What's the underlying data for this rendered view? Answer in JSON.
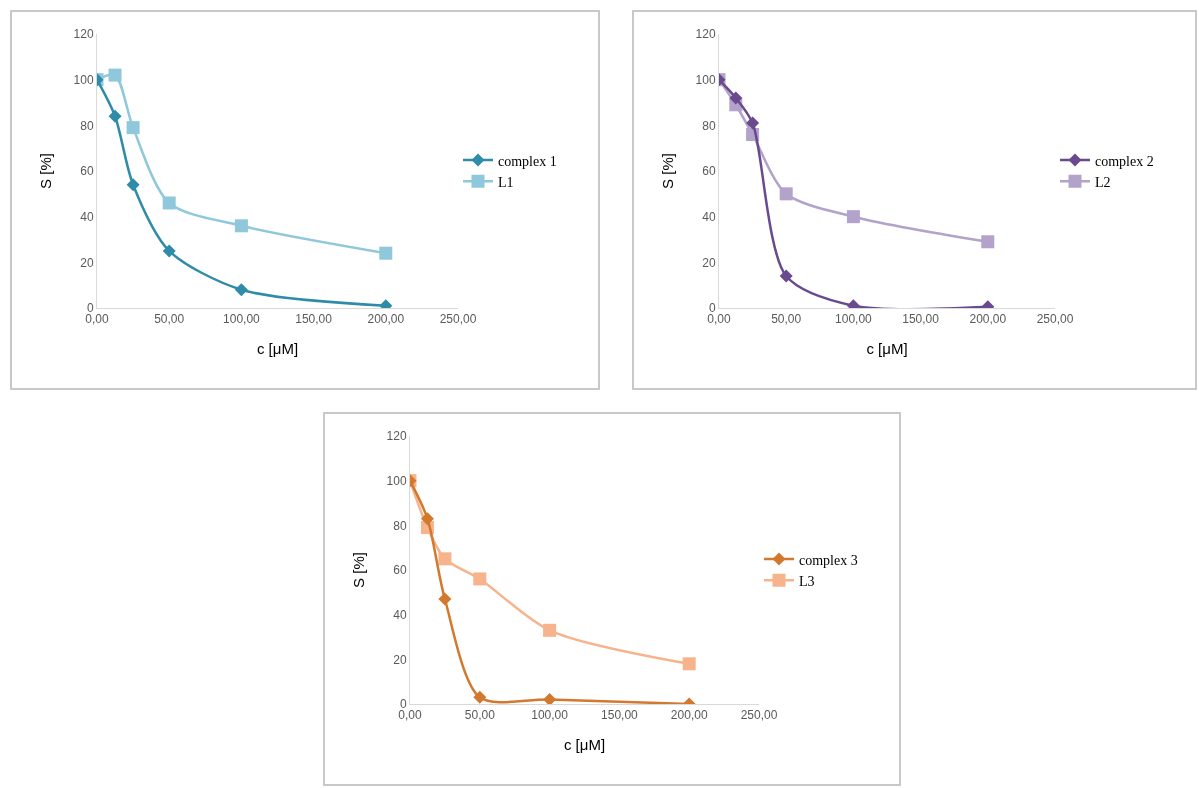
{
  "chart_data": [
    {
      "type": "line",
      "xlabel": "c [μM]",
      "ylabel": "S [%]",
      "x": [
        0,
        12.5,
        25,
        50,
        100,
        200
      ],
      "xlim": [
        0,
        250
      ],
      "xticks": [
        {
          "value": 0,
          "label": "0,00"
        },
        {
          "value": 50,
          "label": "50,00"
        },
        {
          "value": 100,
          "label": "100,00"
        },
        {
          "value": 150,
          "label": "150,00"
        },
        {
          "value": 200,
          "label": "200,00"
        },
        {
          "value": 250,
          "label": "250,00"
        }
      ],
      "ylim": [
        0,
        120
      ],
      "yticks": [
        0,
        20,
        40,
        60,
        80,
        100,
        120
      ],
      "grid": false,
      "legend": "right",
      "line_style": "solid",
      "series": [
        {
          "name": "complex 1",
          "color": "#2e8ca8",
          "marker": "diamond",
          "values": [
            100,
            84,
            54,
            25,
            8,
            1
          ]
        },
        {
          "name": "L1",
          "color": "#8ec8da",
          "marker": "square",
          "values": [
            100,
            102,
            79,
            46,
            36,
            24
          ]
        }
      ]
    },
    {
      "type": "line",
      "xlabel": "c [μM]",
      "ylabel": "S [%]",
      "x": [
        0,
        12.5,
        25,
        50,
        100,
        200
      ],
      "xlim": [
        0,
        250
      ],
      "xticks": [
        {
          "value": 0,
          "label": "0,00"
        },
        {
          "value": 50,
          "label": "50,00"
        },
        {
          "value": 100,
          "label": "100,00"
        },
        {
          "value": 150,
          "label": "150,00"
        },
        {
          "value": 200,
          "label": "200,00"
        },
        {
          "value": 250,
          "label": "250,00"
        }
      ],
      "ylim": [
        0,
        120
      ],
      "yticks": [
        0,
        20,
        40,
        60,
        80,
        100,
        120
      ],
      "grid": false,
      "legend": "right",
      "line_style": "solid",
      "series": [
        {
          "name": "complex 2",
          "color": "#6a4a8e",
          "marker": "diamond",
          "values": [
            100,
            92,
            81,
            14,
            1,
            0.5
          ]
        },
        {
          "name": "L2",
          "color": "#b3a2c9",
          "marker": "square",
          "values": [
            100,
            89,
            76,
            50,
            40,
            29
          ]
        }
      ]
    },
    {
      "type": "line",
      "xlabel": "c [μM]",
      "ylabel": "S [%]",
      "x": [
        0,
        12.5,
        25,
        50,
        100,
        200
      ],
      "xlim": [
        0,
        250
      ],
      "xticks": [
        {
          "value": 0,
          "label": "0,00"
        },
        {
          "value": 50,
          "label": "50,00"
        },
        {
          "value": 100,
          "label": "100,00"
        },
        {
          "value": 150,
          "label": "150,00"
        },
        {
          "value": 200,
          "label": "200,00"
        },
        {
          "value": 250,
          "label": "250,00"
        }
      ],
      "ylim": [
        0,
        120
      ],
      "yticks": [
        0,
        20,
        40,
        60,
        80,
        100,
        120
      ],
      "grid": false,
      "legend": "right",
      "line_style": "solid",
      "series": [
        {
          "name": "complex 3",
          "color": "#d2792e",
          "marker": "diamond",
          "values": [
            100,
            83,
            47,
            3,
            2,
            0
          ]
        },
        {
          "name": "L3",
          "color": "#f6b38c",
          "marker": "square",
          "values": [
            100,
            79,
            65,
            56,
            33,
            18
          ]
        }
      ]
    }
  ]
}
